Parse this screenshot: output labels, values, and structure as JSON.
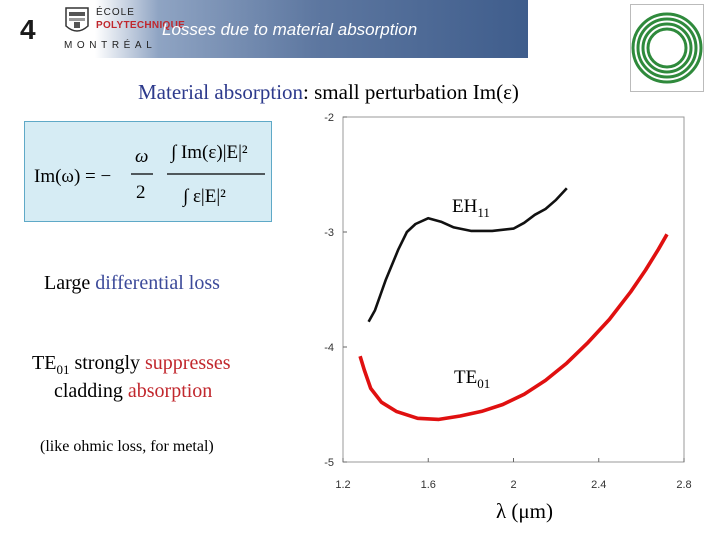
{
  "header": {
    "slide_number": "4",
    "logo_line1": "ÉCOLE",
    "logo_line2": "POLYTECHNIQUE",
    "logo_line3": "MONTRÉAL",
    "title": "Losses due to material absorption"
  },
  "subtitle": {
    "highlight": "Material absorption",
    "rest": ": small perturbation Im(ε)"
  },
  "formula": {
    "lhs": "Im(ω) = −",
    "num_left": "ω",
    "den_left": "2",
    "num_right": "∫ Im(ε)|E|²",
    "den_right": "∫ ε|E|²"
  },
  "text": {
    "large_prefix": "Large ",
    "large_highlight": "differential loss",
    "te_line1_prefix": "TE",
    "te_line1_sub": "01",
    "te_line1_mid": " strongly ",
    "te_line1_highlight": "suppresses",
    "te_line2_prefix": "cladding ",
    "te_line2_highlight": "absorption",
    "note": "(like ohmic loss, for metal)"
  },
  "colors": {
    "accent_blue": "#3c4a9a",
    "accent_red": "#c1272d",
    "formula_bg": "#d6ecf4",
    "curve_eh": "#111111",
    "curve_te": "#e01010"
  },
  "chart_data": {
    "type": "line",
    "xlabel": "λ (μm)",
    "xlim": [
      1.2,
      2.8
    ],
    "ylim": [
      -5,
      -2
    ],
    "xticks": [
      "1.2",
      "1.6",
      "2",
      "2.4",
      "2.8"
    ],
    "yticks": [
      "-2",
      "-3",
      "-4",
      "-5"
    ],
    "series": [
      {
        "name": "EH11",
        "label": "EH",
        "label_sub": "11",
        "x": [
          1.32,
          1.35,
          1.4,
          1.46,
          1.5,
          1.54,
          1.6,
          1.66,
          1.72,
          1.8,
          1.9,
          2.0,
          2.05,
          2.1,
          2.15,
          2.2,
          2.25
        ],
        "y": [
          -3.78,
          -3.68,
          -3.42,
          -3.15,
          -3.0,
          -2.93,
          -2.88,
          -2.91,
          -2.96,
          -2.99,
          -2.99,
          -2.97,
          -2.92,
          -2.85,
          -2.8,
          -2.72,
          -2.62
        ]
      },
      {
        "name": "TE01",
        "label": "TE",
        "label_sub": "01",
        "x": [
          1.28,
          1.3,
          1.33,
          1.38,
          1.45,
          1.55,
          1.65,
          1.75,
          1.85,
          1.95,
          2.05,
          2.15,
          2.25,
          2.35,
          2.45,
          2.55,
          2.62,
          2.68,
          2.72
        ],
        "y": [
          -4.08,
          -4.2,
          -4.36,
          -4.48,
          -4.56,
          -4.62,
          -4.63,
          -4.6,
          -4.56,
          -4.5,
          -4.41,
          -4.29,
          -4.14,
          -3.96,
          -3.76,
          -3.52,
          -3.33,
          -3.15,
          -3.02
        ]
      }
    ]
  }
}
